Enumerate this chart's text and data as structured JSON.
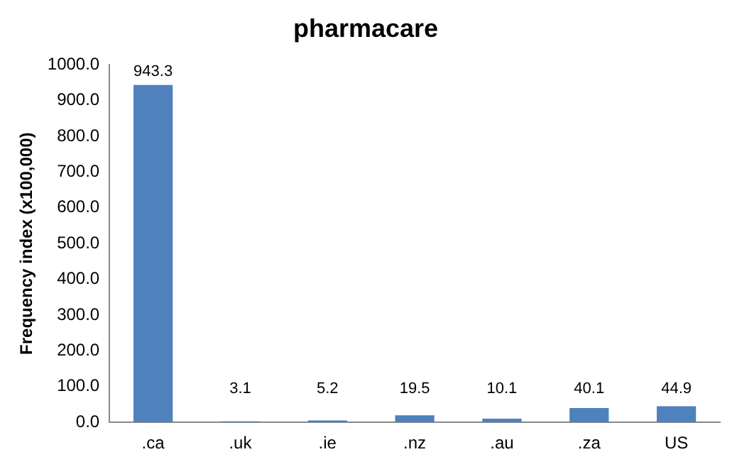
{
  "chart_data": {
    "type": "bar",
    "title": "pharmacare",
    "ylabel": "Frequency index (x100,000)",
    "categories": [
      ".ca",
      ".uk",
      ".ie",
      ".nz",
      ".au",
      ".za",
      "US"
    ],
    "values": [
      943.3,
      3.1,
      5.2,
      19.5,
      10.1,
      40.1,
      44.9
    ],
    "color": "#4f81bd",
    "ylim": [
      0,
      1000
    ],
    "yticks": [
      {
        "value": 0,
        "label": "0.0"
      },
      {
        "value": 100,
        "label": "100.0"
      },
      {
        "value": 200,
        "label": "200.0"
      },
      {
        "value": 300,
        "label": "300.0"
      },
      {
        "value": 400,
        "label": "400.0"
      },
      {
        "value": 500,
        "label": "500.0"
      },
      {
        "value": 600,
        "label": "600.0"
      },
      {
        "value": 700,
        "label": "700.0"
      },
      {
        "value": 800,
        "label": "800.0"
      },
      {
        "value": 900,
        "label": "900.0"
      },
      {
        "value": 1000,
        "label": "1000.0"
      }
    ],
    "data_labels": true,
    "grid": false,
    "legend": false
  }
}
